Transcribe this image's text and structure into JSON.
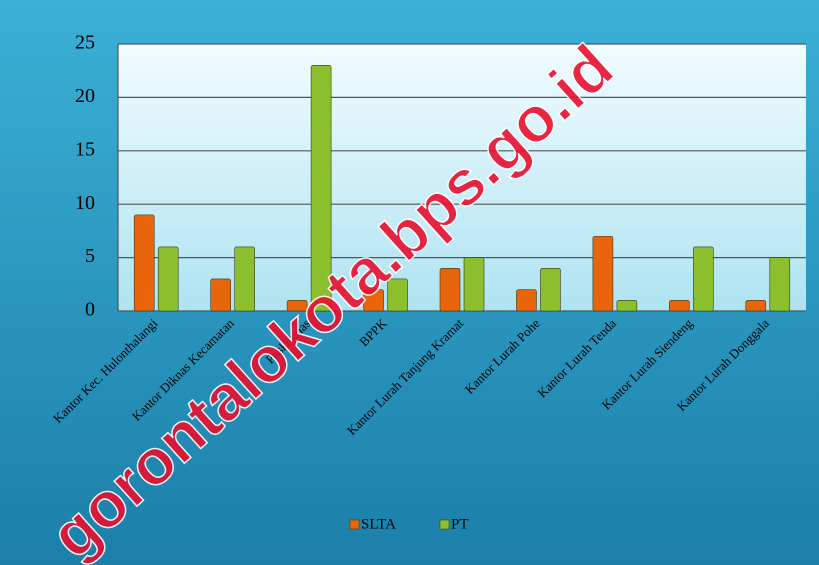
{
  "chart_data": {
    "type": "bar",
    "categories": [
      "Kantor Kec. Hulonthalangi",
      "Kantor Diknas Kecamatan",
      "Puskesmas",
      "BPPK",
      "Kantor Lurah Tanjung Kramat",
      "Kantor Lurah Pohe",
      "Kantor Lurah Tenda",
      "Kantor Lurah Siendeng",
      "Kantor Lurah Donggala"
    ],
    "series": [
      {
        "name": "SLTA",
        "color": "#e8650c",
        "values": [
          9,
          3,
          1,
          2,
          4,
          2,
          7,
          1,
          1
        ]
      },
      {
        "name": "PT",
        "color": "#8cbf2e",
        "values": [
          6,
          6,
          23,
          3,
          5,
          4,
          1,
          6,
          5
        ]
      }
    ],
    "ylim": [
      0,
      25
    ],
    "yticks": [
      0,
      5,
      10,
      15,
      20,
      25
    ],
    "grid": true,
    "legend": "bottom",
    "watermark": "gorontalokota.bps.go.id"
  }
}
